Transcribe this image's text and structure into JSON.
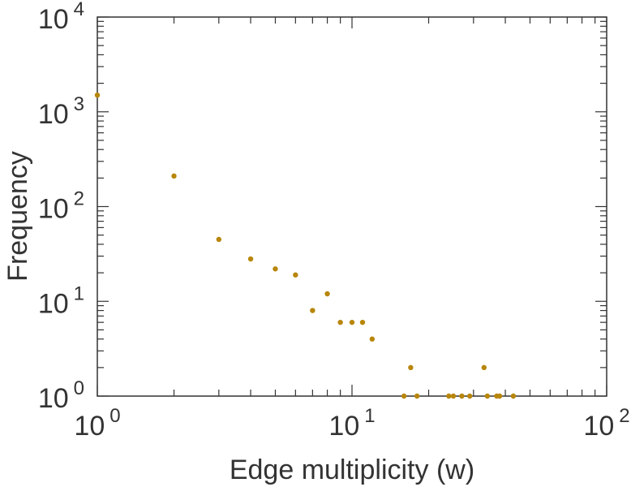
{
  "chart_data": {
    "type": "scatter",
    "xlabel": "Edge multiplicity (w)",
    "ylabel": "Frequency",
    "xscale": "log",
    "yscale": "log",
    "xlim": [
      1,
      100
    ],
    "ylim": [
      1,
      10000
    ],
    "grid": false,
    "marker_color": "#B8860B",
    "x_ticks": [
      {
        "base": "10",
        "exp": "0"
      },
      {
        "base": "10",
        "exp": "1"
      },
      {
        "base": "10",
        "exp": "2"
      }
    ],
    "y_ticks": [
      {
        "base": "10",
        "exp": "0"
      },
      {
        "base": "10",
        "exp": "1"
      },
      {
        "base": "10",
        "exp": "2"
      },
      {
        "base": "10",
        "exp": "3"
      },
      {
        "base": "10",
        "exp": "4"
      }
    ],
    "points": [
      {
        "x": 1,
        "y": 1500
      },
      {
        "x": 2,
        "y": 210
      },
      {
        "x": 3,
        "y": 45
      },
      {
        "x": 4,
        "y": 28
      },
      {
        "x": 5,
        "y": 22
      },
      {
        "x": 6,
        "y": 19
      },
      {
        "x": 7,
        "y": 8
      },
      {
        "x": 8,
        "y": 12
      },
      {
        "x": 9,
        "y": 6
      },
      {
        "x": 10,
        "y": 6
      },
      {
        "x": 11,
        "y": 6
      },
      {
        "x": 12,
        "y": 4
      },
      {
        "x": 16,
        "y": 1
      },
      {
        "x": 17,
        "y": 2
      },
      {
        "x": 18,
        "y": 1
      },
      {
        "x": 24,
        "y": 1
      },
      {
        "x": 25,
        "y": 1
      },
      {
        "x": 27,
        "y": 1
      },
      {
        "x": 29,
        "y": 1
      },
      {
        "x": 33,
        "y": 2
      },
      {
        "x": 34,
        "y": 1
      },
      {
        "x": 37,
        "y": 1
      },
      {
        "x": 38,
        "y": 1
      },
      {
        "x": 43,
        "y": 1
      }
    ]
  }
}
